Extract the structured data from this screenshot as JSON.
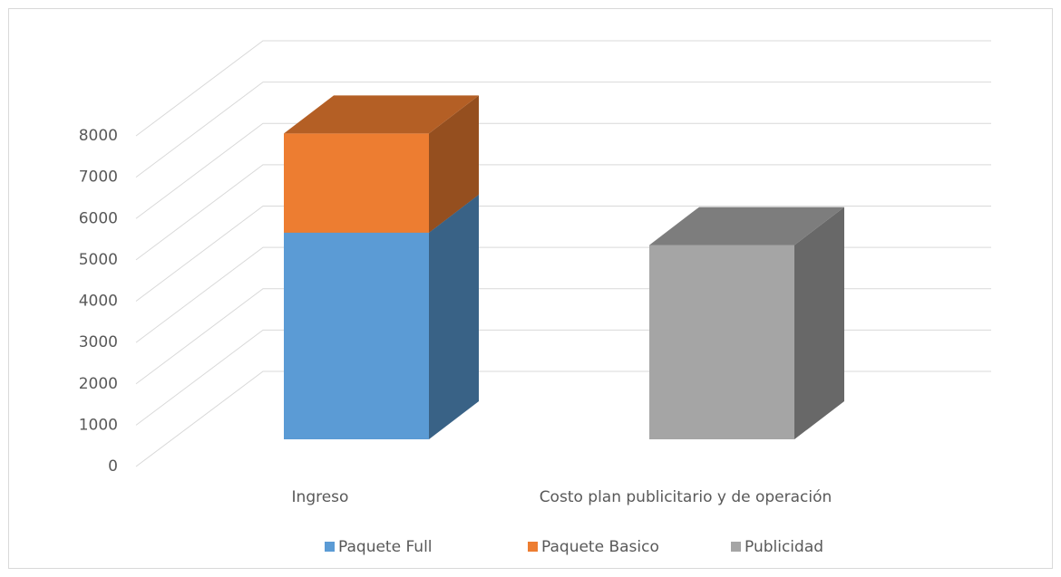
{
  "chart_data": {
    "type": "bar3d_stacked",
    "categories": [
      "Ingreso",
      "Costo plan publicitario y de operación"
    ],
    "series": [
      {
        "name": "Paquete Full",
        "color": "#5b9bd5",
        "values": [
          5000,
          null
        ]
      },
      {
        "name": "Paquete Basico",
        "color": "#ed7d31",
        "values": [
          2400,
          null
        ]
      },
      {
        "name": "Publicidad",
        "color": "#a5a5a5",
        "values": [
          null,
          4700
        ]
      }
    ],
    "ylim": [
      0,
      8000
    ],
    "yticks": [
      0,
      1000,
      2000,
      3000,
      4000,
      5000,
      6000,
      7000,
      8000
    ],
    "grid": true,
    "legend": "bottom"
  }
}
